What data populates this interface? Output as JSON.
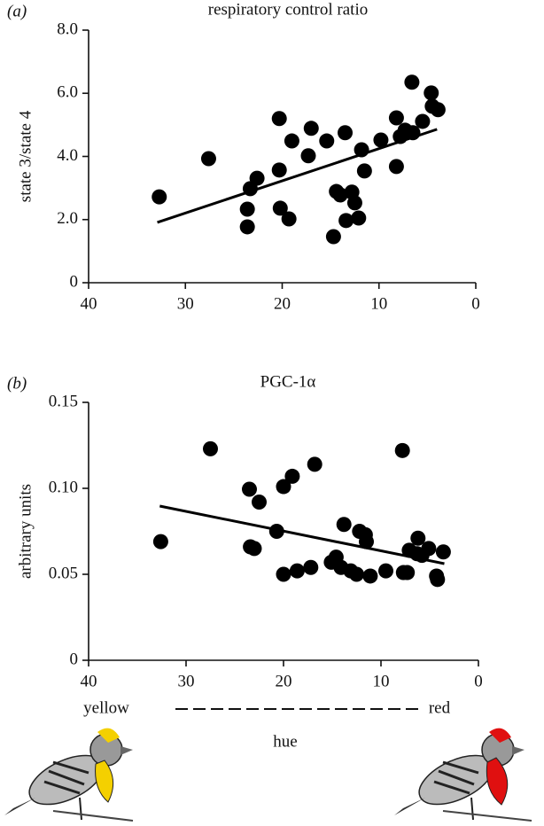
{
  "chart_data": [
    {
      "type": "scatter",
      "panel_label": "(a)",
      "title": "respiratory control ratio",
      "ylabel": "state 3/state 4",
      "color": "#000000",
      "x": [
        32.7,
        27.6,
        23.6,
        23.6,
        23.3,
        22.6,
        20.3,
        20.3,
        20.2,
        19.3,
        19.0,
        17.3,
        17.0,
        15.4,
        14.7,
        14.4,
        14.0,
        13.5,
        13.4,
        12.8,
        12.5,
        12.1,
        11.8,
        11.5,
        9.8,
        8.2,
        8.2,
        7.8,
        7.3,
        6.6,
        6.5,
        5.5,
        4.6,
        4.5,
        3.9
      ],
      "values": [
        2.72,
        3.93,
        2.33,
        1.77,
        2.98,
        3.31,
        5.2,
        3.57,
        2.36,
        2.02,
        4.49,
        4.02,
        4.89,
        4.49,
        1.46,
        2.89,
        2.78,
        4.75,
        1.97,
        2.87,
        2.53,
        2.05,
        4.21,
        3.54,
        4.52,
        3.68,
        5.22,
        4.63,
        4.83,
        6.35,
        4.75,
        5.11,
        6.01,
        5.59,
        5.48
      ],
      "fit": {
        "x": [
          32.9,
          4.0
        ],
        "values": [
          1.91,
          4.86
        ]
      },
      "xlim": [
        40,
        0
      ],
      "xticks": [
        40,
        30,
        20,
        10,
        0
      ],
      "ylim": [
        0,
        8
      ],
      "yticks": [
        0,
        {
          "value": 2,
          "label": "2.0"
        },
        {
          "value": 4,
          "label": "4.0"
        },
        {
          "value": 6,
          "label": "6.0"
        },
        {
          "value": 8,
          "label": "8.0"
        }
      ]
    },
    {
      "type": "scatter",
      "panel_label": "(b)",
      "title": "PGC-1α",
      "ylabel": "arbitrary units",
      "color": "#000000",
      "x": [
        32.6,
        27.5,
        23.5,
        23.4,
        23.0,
        22.5,
        20.7,
        20.0,
        20.0,
        19.1,
        18.6,
        17.2,
        16.8,
        15.1,
        14.6,
        14.1,
        13.8,
        13.1,
        12.5,
        12.2,
        11.6,
        11.5,
        11.1,
        9.5,
        7.8,
        7.7,
        7.3,
        7.1,
        6.3,
        6.2,
        5.8,
        5.1,
        4.3,
        4.2,
        3.6
      ],
      "values": [
        0.069,
        0.123,
        0.0995,
        0.066,
        0.065,
        0.092,
        0.075,
        0.101,
        0.05,
        0.107,
        0.052,
        0.054,
        0.114,
        0.057,
        0.06,
        0.054,
        0.079,
        0.052,
        0.05,
        0.075,
        0.073,
        0.069,
        0.049,
        0.052,
        0.122,
        0.051,
        0.051,
        0.064,
        0.062,
        0.071,
        0.061,
        0.065,
        0.049,
        0.047,
        0.063
      ],
      "fit": {
        "x": [
          32.7,
          3.5
        ],
        "values": [
          0.0897,
          0.0562
        ]
      },
      "xlim": [
        40,
        0
      ],
      "xticks": [
        40,
        30,
        20,
        10,
        0
      ],
      "ylim": [
        0,
        0.15
      ],
      "yticks": [
        0,
        0.05,
        {
          "value": 0.1,
          "label": "0.10"
        },
        0.15
      ]
    }
  ],
  "hue_scale": {
    "left": "yellow",
    "right": "red",
    "label": "hue"
  }
}
